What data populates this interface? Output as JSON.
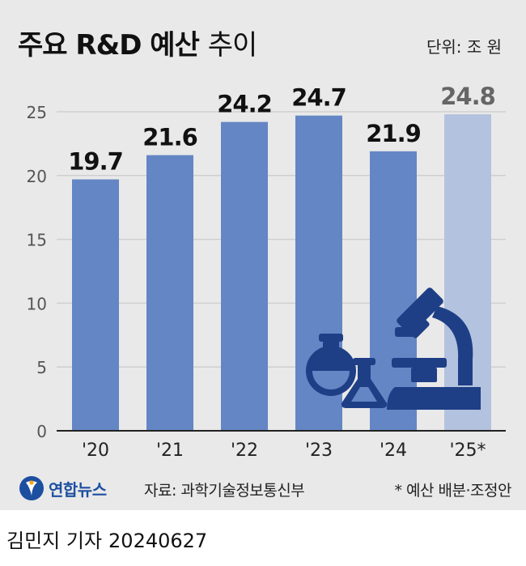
{
  "header": {
    "title_bold": "주요 R&D 예산",
    "title_thin": "추이",
    "unit": "단위: 조 원"
  },
  "chart_data": {
    "type": "bar",
    "title": "주요 R&D 예산 추이",
    "unit": "단위: 조 원",
    "categories": [
      "'20",
      "'21",
      "'22",
      "'23",
      "'24",
      "'25*"
    ],
    "values": [
      19.7,
      21.6,
      24.2,
      24.7,
      21.9,
      24.8
    ],
    "labels": [
      "19.7",
      "21.6",
      "24.2",
      "24.7",
      "21.9",
      "24.8"
    ],
    "yticks": [
      "0",
      "5",
      "10",
      "15",
      "20",
      "25"
    ],
    "ylim": [
      0,
      25
    ],
    "grid": true,
    "colors": {
      "bar": "#6486c4",
      "bar_highlight": "#b3c2de",
      "label": "#111111",
      "label_highlight": "#666666",
      "grid": "#cfcfcf",
      "icon": "#1e3f86"
    }
  },
  "footer": {
    "logo_text": "연합뉴스",
    "source": "자료: 과학기술정보통신부",
    "note": "* 예산 배분·조정안"
  },
  "byline": {
    "author": "김민지 기자",
    "date": "20240627"
  }
}
